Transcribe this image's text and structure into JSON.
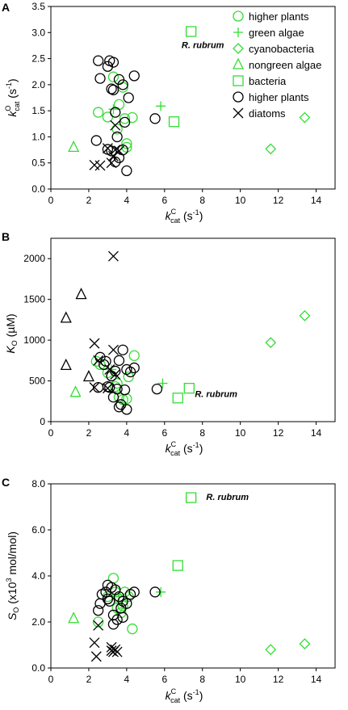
{
  "colors": {
    "green": "#33dd33",
    "black": "#000000"
  },
  "figure": {
    "series_styles": [
      {
        "name": "higher plants",
        "marker": "circle",
        "color": "#33dd33"
      },
      {
        "name": "green algae",
        "marker": "plus",
        "color": "#33dd33"
      },
      {
        "name": "cyanobacteria",
        "marker": "diamond",
        "color": "#33dd33"
      },
      {
        "name": "nongreen algae",
        "marker": "triangle",
        "color": "#33dd33"
      },
      {
        "name": "bacteria",
        "marker": "square",
        "color": "#33dd33"
      },
      {
        "name": "higher plants",
        "marker": "circle",
        "color": "#000000"
      },
      {
        "name": "diatoms",
        "marker": "x",
        "color": "#000000"
      },
      {
        "name": "nongreen algae",
        "marker": "triangle",
        "color": "#000000"
      }
    ]
  },
  "chart_data": [
    {
      "type": "scatter",
      "panel": "A",
      "xlabel": {
        "main": "k",
        "sup": "C",
        "sub": "cat",
        "unit": " (s",
        "unit_sup": "-1",
        "unit_end": ")"
      },
      "ylabel": {
        "main": "k",
        "sup": "O",
        "sub": "cat",
        "unit": " (s",
        "unit_sup": "-1",
        "unit_end": ")"
      },
      "xlim": [
        0,
        15
      ],
      "ylim": [
        0,
        3.5
      ],
      "xticks": [
        "0",
        "2",
        "4",
        "6",
        "8",
        "10",
        "12",
        "14"
      ],
      "yticks": [
        "0.0",
        "0.5",
        "1.0",
        "1.5",
        "2.0",
        "2.5",
        "3.0",
        "3.5"
      ],
      "xtick_values": [
        0,
        2,
        4,
        6,
        8,
        10,
        12,
        14
      ],
      "ytick_values": [
        0,
        0.5,
        1,
        1.5,
        2,
        2.5,
        3,
        3.5
      ],
      "legend": {
        "placement": "top-right",
        "entries": [
          {
            "label": "higher plants",
            "style": 0
          },
          {
            "label": "green algae",
            "style": 1
          },
          {
            "label": "cyanobacteria",
            "style": 2
          },
          {
            "label": "nongreen algae",
            "style": 3
          },
          {
            "label": "bacteria",
            "style": 4
          },
          {
            "label": "higher plants",
            "style": 5
          },
          {
            "label": "diatoms",
            "style": 6
          }
        ]
      },
      "annotations": [
        {
          "text": "R. rubrum",
          "x": 6.9,
          "y": 2.7
        }
      ],
      "series": [
        {
          "style": 0,
          "x": [
            2.5,
            3.0,
            3.3,
            3.6,
            3.8,
            3.9,
            4.0,
            4.0,
            4.3,
            3.5
          ],
          "y": [
            1.47,
            1.38,
            2.15,
            1.62,
            1.95,
            1.35,
            0.87,
            0.8,
            1.37,
            1.15
          ]
        },
        {
          "style": 1,
          "x": [
            3.3,
            5.8
          ],
          "y": [
            1.53,
            1.59
          ]
        },
        {
          "style": 2,
          "x": [
            11.6,
            13.4
          ],
          "y": [
            0.77,
            1.37
          ]
        },
        {
          "style": 3,
          "x": [
            1.2
          ],
          "y": [
            0.8
          ]
        },
        {
          "style": 4,
          "x": [
            6.5,
            7.4
          ],
          "y": [
            1.29,
            3.02
          ]
        },
        {
          "style": 5,
          "x": [
            2.5,
            2.6,
            3.1,
            3.3,
            3.2,
            3.6,
            3.8,
            3.4,
            4.1,
            4.4,
            3.9,
            5.5,
            2.4,
            3.5,
            3.8,
            3.4,
            3.2,
            3.6,
            4.0,
            3.0,
            3.3,
            3.0
          ],
          "y": [
            2.46,
            2.12,
            2.46,
            2.43,
            1.92,
            2.1,
            2.0,
            1.47,
            1.75,
            2.17,
            1.28,
            1.35,
            0.93,
            1.0,
            0.75,
            0.52,
            0.73,
            0.6,
            0.35,
            2.35,
            1.9,
            0.76
          ]
        },
        {
          "style": 6,
          "x": [
            2.3,
            2.6,
            3.2,
            3.4,
            3.6,
            3.3,
            3.0,
            3.4
          ],
          "y": [
            0.46,
            0.45,
            0.5,
            0.75,
            0.73,
            0.63,
            0.78,
            1.22
          ]
        }
      ]
    },
    {
      "type": "scatter",
      "panel": "B",
      "xlabel": {
        "main": "k",
        "sup": "C",
        "sub": "cat",
        "unit": " (s",
        "unit_sup": "-1",
        "unit_end": ")"
      },
      "ylabel": {
        "main": "K",
        "sub": "O",
        "unit": " (µM)"
      },
      "xlim": [
        0,
        15
      ],
      "ylim": [
        0,
        2250
      ],
      "xticks": [
        "0",
        "2",
        "4",
        "6",
        "8",
        "10",
        "12",
        "14"
      ],
      "yticks": [
        "0",
        "500",
        "1000",
        "1500",
        "2000"
      ],
      "xtick_values": [
        0,
        2,
        4,
        6,
        8,
        10,
        12,
        14
      ],
      "ytick_values": [
        0,
        500,
        1000,
        1500,
        2000
      ],
      "annotations": [
        {
          "text": "R. rubrum",
          "x": 7.6,
          "y": 300
        }
      ],
      "series": [
        {
          "style": 0,
          "x": [
            2.4,
            2.6,
            3.0,
            3.4,
            3.6,
            3.8,
            4.0,
            4.1,
            4.4,
            3.2,
            3.5
          ],
          "y": [
            740,
            700,
            600,
            430,
            300,
            270,
            280,
            550,
            810,
            560,
            470
          ]
        },
        {
          "style": 1,
          "x": [
            3.2,
            5.9
          ],
          "y": [
            640,
            470
          ]
        },
        {
          "style": 2,
          "x": [
            11.6,
            13.4
          ],
          "y": [
            970,
            1300
          ]
        },
        {
          "style": 3,
          "x": [
            1.3
          ],
          "y": [
            360
          ]
        },
        {
          "style": 4,
          "x": [
            6.7,
            7.3
          ],
          "y": [
            290,
            410
          ]
        },
        {
          "style": 5,
          "x": [
            2.5,
            2.6,
            2.8,
            3.0,
            3.2,
            3.4,
            3.6,
            3.8,
            4.0,
            4.2,
            4.4,
            3.5,
            3.7,
            3.9,
            3.3,
            3.1,
            5.6,
            3.6,
            4.0,
            2.9
          ],
          "y": [
            420,
            790,
            700,
            430,
            560,
            620,
            750,
            880,
            640,
            610,
            660,
            400,
            210,
            390,
            300,
            420,
            400,
            180,
            150,
            740
          ]
        },
        {
          "style": 6,
          "x": [
            2.3,
            2.5,
            3.3,
            3.3,
            3.1,
            3.4,
            2.3,
            3.0
          ],
          "y": [
            960,
            750,
            2030,
            880,
            640,
            580,
            420,
            410
          ]
        },
        {
          "style": 7,
          "x": [
            0.8,
            0.8,
            1.6,
            2.0
          ],
          "y": [
            1270,
            690,
            1560,
            550
          ]
        }
      ]
    },
    {
      "type": "scatter",
      "panel": "C",
      "xlabel": {
        "main": "k",
        "sup": "C",
        "sub": "cat",
        "unit": " (s",
        "unit_sup": "-1",
        "unit_end": ")"
      },
      "ylabel": {
        "main": "S",
        "sub": "O",
        "unit": " (x10",
        "unit_sup": "3",
        "unit_end": " mol/mol)"
      },
      "xlim": [
        0,
        15
      ],
      "ylim": [
        0,
        8
      ],
      "xticks": [
        "0",
        "2",
        "4",
        "6",
        "8",
        "10",
        "12",
        "14"
      ],
      "yticks": [
        "0.0",
        "2.0",
        "4.0",
        "6.0",
        "8.0"
      ],
      "xtick_values": [
        0,
        2,
        4,
        6,
        8,
        10,
        12,
        14
      ],
      "ytick_values": [
        0,
        2,
        4,
        6,
        8
      ],
      "annotations": [
        {
          "text": "R. rubrum",
          "x": 8.2,
          "y": 7.3
        }
      ],
      "series": [
        {
          "style": 0,
          "x": [
            2.5,
            3.0,
            3.3,
            3.4,
            3.6,
            3.8,
            3.9,
            4.1,
            4.3,
            3.5,
            3.7
          ],
          "y": [
            2.0,
            3.1,
            3.9,
            3.3,
            3.0,
            2.7,
            3.3,
            3.1,
            1.7,
            2.6,
            2.4
          ]
        },
        {
          "style": 1,
          "x": [
            3.6,
            5.8
          ],
          "y": [
            3.1,
            3.3
          ]
        },
        {
          "style": 2,
          "x": [
            11.6,
            13.4
          ],
          "y": [
            0.8,
            1.05
          ]
        },
        {
          "style": 3,
          "x": [
            1.2
          ],
          "y": [
            2.15
          ]
        },
        {
          "style": 4,
          "x": [
            6.7,
            7.4
          ],
          "y": [
            4.45,
            7.4
          ]
        },
        {
          "style": 5,
          "x": [
            2.5,
            2.7,
            2.9,
            3.0,
            3.2,
            3.4,
            3.6,
            3.8,
            4.0,
            4.2,
            4.4,
            3.1,
            3.3,
            3.5,
            3.7,
            5.5,
            3.8,
            3.3,
            2.6,
            3.0
          ],
          "y": [
            2.5,
            3.2,
            3.3,
            3.6,
            3.5,
            3.4,
            3.1,
            2.9,
            2.8,
            3.2,
            3.3,
            2.9,
            2.3,
            2.1,
            2.6,
            3.3,
            2.2,
            1.9,
            2.8,
            3.0
          ]
        },
        {
          "style": 6,
          "x": [
            2.3,
            2.5,
            3.2,
            3.4,
            3.3,
            2.4,
            3.5,
            3.2
          ],
          "y": [
            1.1,
            1.85,
            0.75,
            0.8,
            0.7,
            0.5,
            0.7,
            0.9
          ]
        }
      ]
    }
  ]
}
